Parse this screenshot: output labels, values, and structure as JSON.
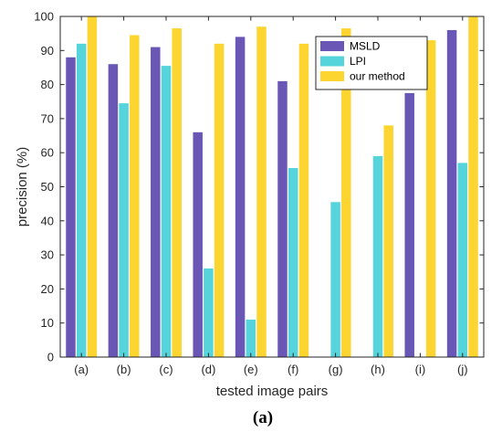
{
  "chart_data": {
    "type": "bar",
    "title": "",
    "xlabel": "tested image pairs",
    "ylabel": "precision (%)",
    "ylim": [
      0,
      100
    ],
    "yticks": [
      0,
      10,
      20,
      30,
      40,
      50,
      60,
      70,
      80,
      90,
      100
    ],
    "grid": false,
    "legend_position": "top-right",
    "categories": [
      "(a)",
      "(b)",
      "(c)",
      "(d)",
      "(e)",
      "(f)",
      "(g)",
      "(h)",
      "(i)",
      "(j)"
    ],
    "series": [
      {
        "name": "MSLD",
        "color": "#6a56b5",
        "values": [
          88,
          86,
          91,
          66,
          94,
          81,
          null,
          null,
          77.5,
          96
        ]
      },
      {
        "name": "LPI",
        "color": "#56d4dc",
        "values": [
          92,
          74.5,
          85.5,
          26,
          11,
          55.5,
          45.5,
          59,
          null,
          57
        ]
      },
      {
        "name": "our method",
        "color": "#fcd531",
        "values": [
          100,
          94.5,
          96.5,
          92,
          97,
          92,
          96.5,
          68,
          93,
          100
        ]
      }
    ],
    "panel_label": "(a)"
  }
}
